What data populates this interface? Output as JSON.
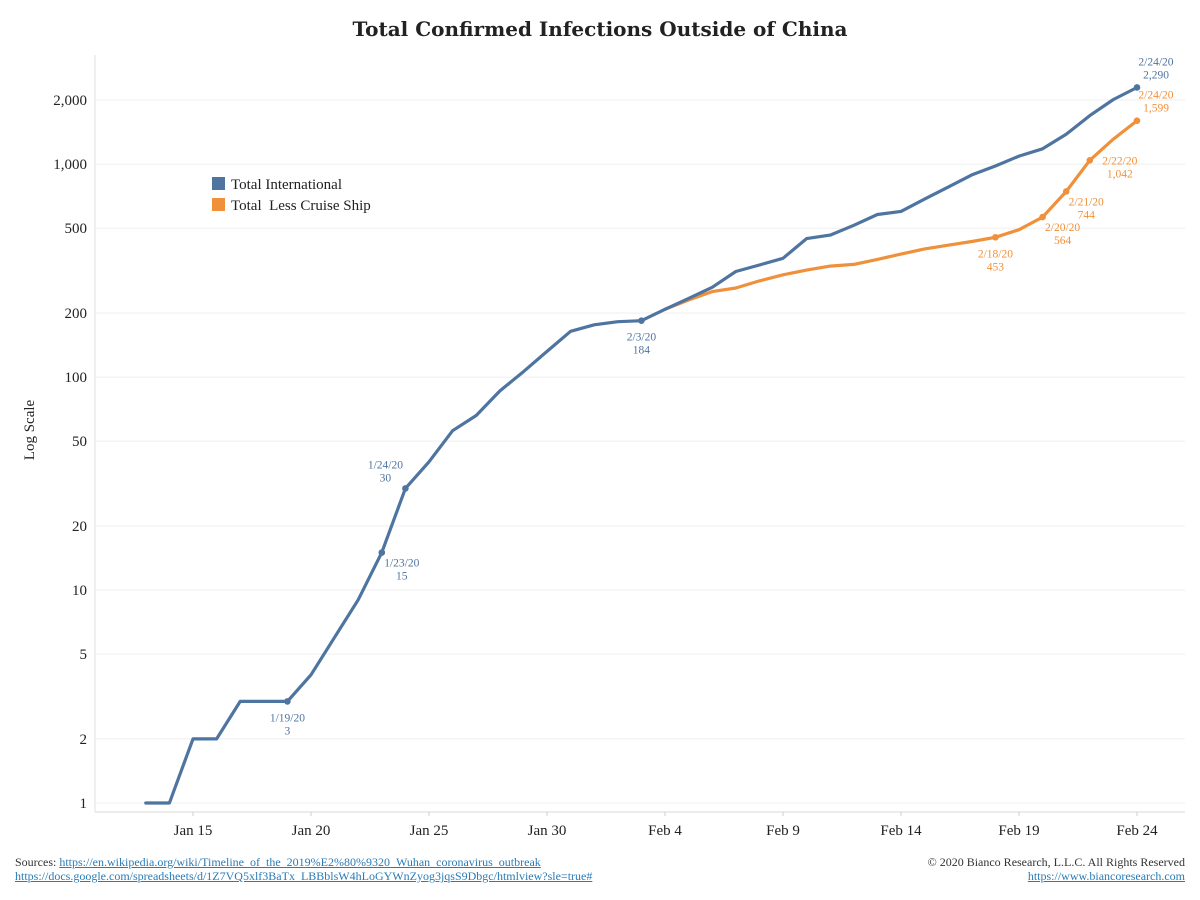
{
  "chart_data": {
    "type": "line",
    "title": "Total Confirmed Infections Outside of China",
    "ylabel": "Log Scale",
    "yscale": "log",
    "ylim": [
      1,
      2900
    ],
    "y_ticks": [
      {
        "value": 1,
        "label": "1"
      },
      {
        "value": 2,
        "label": "2"
      },
      {
        "value": 5,
        "label": "5"
      },
      {
        "value": 10,
        "label": "10"
      },
      {
        "value": 20,
        "label": "20"
      },
      {
        "value": 50,
        "label": "50"
      },
      {
        "value": 100,
        "label": "100"
      },
      {
        "value": 200,
        "label": "200"
      },
      {
        "value": 500,
        "label": "500"
      },
      {
        "value": 1000,
        "label": "1,000"
      },
      {
        "value": 2000,
        "label": "2,000"
      }
    ],
    "x_ticks": [
      {
        "date": "2020-01-15",
        "label": "Jan 15"
      },
      {
        "date": "2020-01-20",
        "label": "Jan 20"
      },
      {
        "date": "2020-01-25",
        "label": "Jan 25"
      },
      {
        "date": "2020-01-30",
        "label": "Jan 30"
      },
      {
        "date": "2020-02-04",
        "label": "Feb 4"
      },
      {
        "date": "2020-02-09",
        "label": "Feb 9"
      },
      {
        "date": "2020-02-14",
        "label": "Feb 14"
      },
      {
        "date": "2020-02-19",
        "label": "Feb 19"
      },
      {
        "date": "2020-02-24",
        "label": "Feb 24"
      }
    ],
    "grid": "horizontal",
    "legend_position": "upper-left",
    "series": [
      {
        "name": "Total International",
        "color": "#4e74a0",
        "points": [
          {
            "date": "2020-01-13",
            "value": 1
          },
          {
            "date": "2020-01-14",
            "value": 1
          },
          {
            "date": "2020-01-15",
            "value": 2
          },
          {
            "date": "2020-01-16",
            "value": 2
          },
          {
            "date": "2020-01-17",
            "value": 3
          },
          {
            "date": "2020-01-18",
            "value": 3
          },
          {
            "date": "2020-01-19",
            "value": 3
          },
          {
            "date": "2020-01-20",
            "value": 4
          },
          {
            "date": "2020-01-21",
            "value": 6
          },
          {
            "date": "2020-01-22",
            "value": 9
          },
          {
            "date": "2020-01-23",
            "value": 15
          },
          {
            "date": "2020-01-24",
            "value": 30
          },
          {
            "date": "2020-01-25",
            "value": 40
          },
          {
            "date": "2020-01-26",
            "value": 56
          },
          {
            "date": "2020-01-27",
            "value": 66
          },
          {
            "date": "2020-01-28",
            "value": 86
          },
          {
            "date": "2020-01-29",
            "value": 106
          },
          {
            "date": "2020-01-30",
            "value": 132
          },
          {
            "date": "2020-01-31",
            "value": 164
          },
          {
            "date": "2020-02-01",
            "value": 176
          },
          {
            "date": "2020-02-02",
            "value": 182
          },
          {
            "date": "2020-02-03",
            "value": 184
          },
          {
            "date": "2020-02-04",
            "value": 208
          },
          {
            "date": "2020-02-05",
            "value": 234
          },
          {
            "date": "2020-02-06",
            "value": 264
          },
          {
            "date": "2020-02-07",
            "value": 313
          },
          {
            "date": "2020-02-08",
            "value": 336
          },
          {
            "date": "2020-02-09",
            "value": 361
          },
          {
            "date": "2020-02-10",
            "value": 447
          },
          {
            "date": "2020-02-11",
            "value": 464
          },
          {
            "date": "2020-02-12",
            "value": 516
          },
          {
            "date": "2020-02-13",
            "value": 580
          },
          {
            "date": "2020-02-14",
            "value": 600
          },
          {
            "date": "2020-02-15",
            "value": 685
          },
          {
            "date": "2020-02-16",
            "value": 780
          },
          {
            "date": "2020-02-17",
            "value": 890
          },
          {
            "date": "2020-02-18",
            "value": 980
          },
          {
            "date": "2020-02-19",
            "value": 1090
          },
          {
            "date": "2020-02-20",
            "value": 1180
          },
          {
            "date": "2020-02-21",
            "value": 1380
          },
          {
            "date": "2020-02-22",
            "value": 1690
          },
          {
            "date": "2020-02-23",
            "value": 2010
          },
          {
            "date": "2020-02-24",
            "value": 2290
          }
        ],
        "annotations": [
          {
            "date": "2020-01-19",
            "value": 3,
            "date_label": "1/19/20",
            "value_label": "3",
            "placement": "below"
          },
          {
            "date": "2020-01-23",
            "value": 15,
            "date_label": "1/23/20",
            "value_label": "15",
            "placement": "below-right"
          },
          {
            "date": "2020-01-24",
            "value": 30,
            "date_label": "1/24/20",
            "value_label": "30",
            "placement": "above-left"
          },
          {
            "date": "2020-02-03",
            "value": 184,
            "date_label": "2/3/20",
            "value_label": "184",
            "placement": "below"
          },
          {
            "date": "2020-02-24",
            "value": 2290,
            "date_label": "2/24/20",
            "value_label": "2,290",
            "placement": "above"
          }
        ]
      },
      {
        "name": "Total  Less Cruise Ship",
        "color": "#f0903a",
        "points": [
          {
            "date": "2020-02-04",
            "value": 208
          },
          {
            "date": "2020-02-05",
            "value": 230
          },
          {
            "date": "2020-02-06",
            "value": 252
          },
          {
            "date": "2020-02-07",
            "value": 262
          },
          {
            "date": "2020-02-08",
            "value": 283
          },
          {
            "date": "2020-02-09",
            "value": 302
          },
          {
            "date": "2020-02-10",
            "value": 318
          },
          {
            "date": "2020-02-11",
            "value": 332
          },
          {
            "date": "2020-02-12",
            "value": 338
          },
          {
            "date": "2020-02-13",
            "value": 357
          },
          {
            "date": "2020-02-14",
            "value": 378
          },
          {
            "date": "2020-02-15",
            "value": 400
          },
          {
            "date": "2020-02-16",
            "value": 416
          },
          {
            "date": "2020-02-17",
            "value": 433
          },
          {
            "date": "2020-02-18",
            "value": 453
          },
          {
            "date": "2020-02-19",
            "value": 492
          },
          {
            "date": "2020-02-20",
            "value": 564
          },
          {
            "date": "2020-02-21",
            "value": 744
          },
          {
            "date": "2020-02-22",
            "value": 1042
          },
          {
            "date": "2020-02-23",
            "value": 1310
          },
          {
            "date": "2020-02-24",
            "value": 1599
          }
        ],
        "annotations": [
          {
            "date": "2020-02-18",
            "value": 453,
            "date_label": "2/18/20",
            "value_label": "453",
            "placement": "below"
          },
          {
            "date": "2020-02-20",
            "value": 564,
            "date_label": "2/20/20",
            "value_label": "564",
            "placement": "below-right"
          },
          {
            "date": "2020-02-21",
            "value": 744,
            "date_label": "2/21/20",
            "value_label": "744",
            "placement": "below-right"
          },
          {
            "date": "2020-02-22",
            "value": 1042,
            "date_label": "2/22/20",
            "value_label": "1,042",
            "placement": "right"
          },
          {
            "date": "2020-02-24",
            "value": 1599,
            "date_label": "2/24/20",
            "value_label": "1,599",
            "placement": "above"
          }
        ]
      }
    ]
  },
  "footer": {
    "sources_label": "Sources:",
    "source_link_1": "https://en.wikipedia.org/wiki/Timeline_of_the_2019%E2%80%9320_Wuhan_coronavirus_outbreak",
    "source_link_2": "https://docs.google.com/spreadsheets/d/1Z7VQ5xlf3BaTx_LBBblsW4hLoGYWnZyog3jqsS9Dbgc/htmlview?sle=true#",
    "copyright": "© 2020 Bianco Research, L.L.C. All Rights Reserved",
    "website": "https://www.biancoresearch.com"
  }
}
